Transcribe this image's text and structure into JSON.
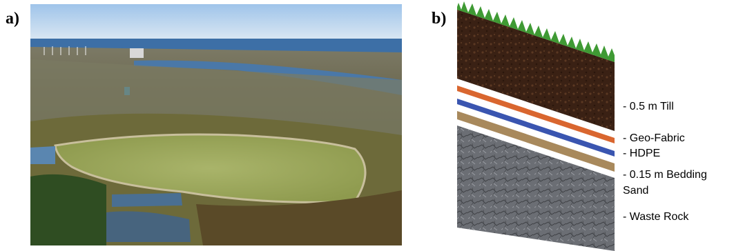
{
  "panels": {
    "a": {
      "label": "a)"
    },
    "b": {
      "label": "b)"
    }
  },
  "cover_layers": [
    {
      "name": "grass",
      "color": "#3f9a34"
    },
    {
      "name": "till",
      "label": "- 0.5 m Till",
      "color": "#3a2114"
    },
    {
      "name": "geo-fabric",
      "label": "- Geo-Fabric",
      "color": "#d9662f"
    },
    {
      "name": "hdpe",
      "label": "- HDPE",
      "color": "#3a55b0"
    },
    {
      "name": "bedding-sand",
      "label_line1": "- 0.15 m Bedding",
      "label_line2": "Sand",
      "color": "#a8895c"
    },
    {
      "name": "waste-rock",
      "label": "- Waste Rock",
      "color": "#6b6e74"
    }
  ]
}
